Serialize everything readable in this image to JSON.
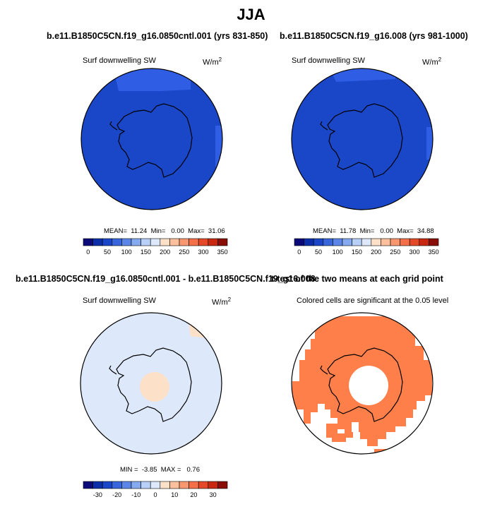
{
  "title": "JJA",
  "panels": [
    {
      "title": "b.e11.B1850C5CN.f19_g16.0850cntl.001 (yrs 831-850)",
      "variable": "Surf downwelling SW",
      "units_base": "W/m",
      "units_exp": "2",
      "stats": "MEAN=  11.24  Min=   0.00  Max=  31.06",
      "colorbar": {
        "colors": [
          "#0a0a78",
          "#0c2ea8",
          "#1a46c8",
          "#3a66dc",
          "#5c86e8",
          "#86aaf0",
          "#b8d0f8",
          "#dde9fb",
          "#fde0c8",
          "#fcc09c",
          "#f99870",
          "#f47048",
          "#e44a28",
          "#c82810",
          "#8a0e08"
        ],
        "ticks": [
          "0",
          "50",
          "100",
          "150",
          "200",
          "250",
          "300",
          "350"
        ]
      }
    },
    {
      "title": "b.e11.B1850C5CN.f19_g16.008 (yrs 981-1000)",
      "variable": "Surf downwelling SW",
      "units_base": "W/m",
      "units_exp": "2",
      "stats": "MEAN=  11.78  Min=   0.00  Max=  34.88",
      "colorbar": {
        "colors": [
          "#0a0a78",
          "#0c2ea8",
          "#1a46c8",
          "#3a66dc",
          "#5c86e8",
          "#86aaf0",
          "#b8d0f8",
          "#dde9fb",
          "#fde0c8",
          "#fcc09c",
          "#f99870",
          "#f47048",
          "#e44a28",
          "#c82810",
          "#8a0e08"
        ],
        "ticks": [
          "0",
          "50",
          "100",
          "150",
          "200",
          "250",
          "300",
          "350"
        ]
      }
    },
    {
      "title": "b.e11.B1850C5CN.f19_g16.0850cntl.001 - b.e11.B1850C5CN.f19_g16.008",
      "variable": "Surf downwelling SW",
      "units_base": "W/m",
      "units_exp": "2",
      "stats": "MIN =  -3.85  MAX =   0.76",
      "colorbar": {
        "colors": [
          "#0a0a78",
          "#0c2ea8",
          "#1a46c8",
          "#3a66dc",
          "#5c86e8",
          "#86aaf0",
          "#b8d0f8",
          "#dde9fb",
          "#fde0c8",
          "#fcc09c",
          "#f99870",
          "#f47048",
          "#e44a28",
          "#c82810",
          "#8a0e08"
        ],
        "ticks": [
          "-30",
          "-20",
          "-10",
          "0",
          "10",
          "20",
          "30"
        ]
      }
    },
    {
      "title": "t-test of the two means at each grid point",
      "subtitle": "Colored cells are significant at the 0.05 level"
    }
  ],
  "map_colors": {
    "bg_dark_blue": "#1a46c8",
    "patch_blue": "#2f5de3",
    "diff_bg": "#dde9fb",
    "diff_patch": "#fde0c8",
    "signif": "#ff7f4a"
  }
}
